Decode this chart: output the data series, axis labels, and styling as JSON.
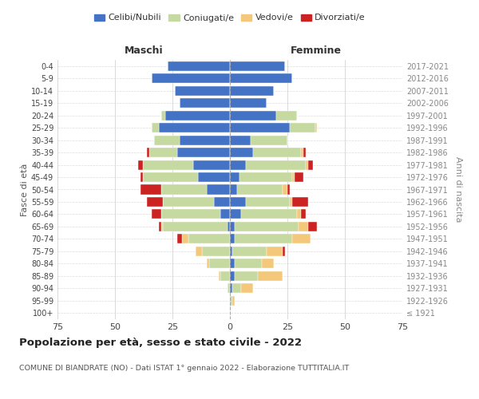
{
  "age_groups": [
    "100+",
    "95-99",
    "90-94",
    "85-89",
    "80-84",
    "75-79",
    "70-74",
    "65-69",
    "60-64",
    "55-59",
    "50-54",
    "45-49",
    "40-44",
    "35-39",
    "30-34",
    "25-29",
    "20-24",
    "15-19",
    "10-14",
    "5-9",
    "0-4"
  ],
  "birth_years": [
    "≤ 1921",
    "1922-1926",
    "1927-1931",
    "1932-1936",
    "1937-1941",
    "1942-1946",
    "1947-1951",
    "1952-1956",
    "1957-1961",
    "1962-1966",
    "1967-1971",
    "1972-1976",
    "1977-1981",
    "1982-1986",
    "1987-1991",
    "1992-1996",
    "1997-2001",
    "2002-2006",
    "2007-2011",
    "2012-2016",
    "2017-2021"
  ],
  "colors": {
    "celibi": "#4472C4",
    "coniugati": "#C5D9A0",
    "vedovi": "#F4C87A",
    "divorziati": "#CC2222"
  },
  "maschi": {
    "celibi": [
      0,
      0,
      0,
      0,
      0,
      0,
      0,
      1,
      4,
      7,
      10,
      14,
      16,
      23,
      22,
      31,
      28,
      22,
      24,
      34,
      27
    ],
    "coniugati": [
      0,
      0,
      1,
      4,
      9,
      12,
      18,
      28,
      26,
      22,
      20,
      24,
      22,
      12,
      11,
      3,
      2,
      0,
      0,
      0,
      0
    ],
    "vedovi": [
      0,
      0,
      0,
      1,
      1,
      3,
      3,
      1,
      0,
      0,
      0,
      0,
      0,
      0,
      0,
      0,
      0,
      0,
      0,
      0,
      0
    ],
    "divorziati": [
      0,
      0,
      0,
      0,
      0,
      0,
      2,
      1,
      4,
      7,
      9,
      1,
      2,
      1,
      0,
      0,
      0,
      0,
      0,
      0,
      0
    ]
  },
  "femmine": {
    "celibi": [
      0,
      0,
      1,
      2,
      2,
      1,
      2,
      2,
      5,
      7,
      3,
      4,
      7,
      10,
      9,
      26,
      20,
      16,
      19,
      27,
      24
    ],
    "coniugati": [
      0,
      1,
      4,
      10,
      12,
      15,
      25,
      28,
      24,
      19,
      20,
      23,
      26,
      21,
      16,
      11,
      9,
      0,
      0,
      0,
      0
    ],
    "vedovi": [
      0,
      1,
      5,
      11,
      5,
      7,
      8,
      4,
      2,
      1,
      2,
      1,
      1,
      1,
      0,
      1,
      0,
      0,
      0,
      0,
      0
    ],
    "divorziati": [
      0,
      0,
      0,
      0,
      0,
      1,
      0,
      4,
      2,
      7,
      1,
      4,
      2,
      1,
      0,
      0,
      0,
      0,
      0,
      0,
      0
    ]
  },
  "title": "Popolazione per età, sesso e stato civile - 2022",
  "subtitle": "COMUNE DI BIANDRATE (NO) - Dati ISTAT 1° gennaio 2022 - Elaborazione TUTTITALIA.IT",
  "xlabel_left": "Maschi",
  "xlabel_right": "Femmine",
  "ylabel_left": "Fasce di età",
  "ylabel_right": "Anni di nascita",
  "xlim": 75,
  "legend_labels": [
    "Celibi/Nubili",
    "Coniugati/e",
    "Vedovi/e",
    "Divorziati/e"
  ],
  "background_color": "#ffffff",
  "grid_color": "#cccccc"
}
